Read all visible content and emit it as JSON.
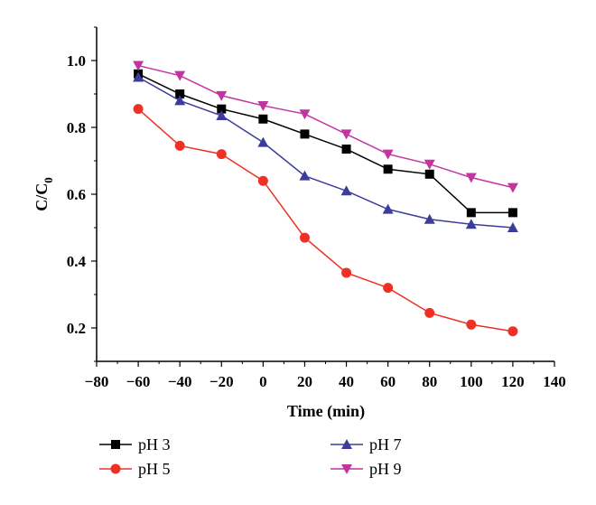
{
  "chart_data": {
    "type": "line",
    "title": "",
    "xlabel": "Time (min)",
    "ylabel": "C/C",
    "ylabel_subscript": "0",
    "xlim": [
      -80,
      140
    ],
    "ylim": [
      0.1,
      1.1
    ],
    "x_ticks": [
      -80,
      -60,
      -40,
      -20,
      0,
      20,
      40,
      60,
      80,
      100,
      120,
      140
    ],
    "y_ticks": [
      0.2,
      0.4,
      0.6,
      0.8,
      1.0
    ],
    "y_tick_labels": [
      "0.2",
      "0.4",
      "0.6",
      "0.8",
      "1.0"
    ],
    "grid": false,
    "legend_position": "bottom",
    "x": [
      -60,
      -40,
      -20,
      0,
      20,
      40,
      60,
      80,
      100,
      120
    ],
    "series": [
      {
        "name": "pH 3",
        "color": "#000000",
        "marker": "square",
        "values": [
          0.96,
          0.9,
          0.855,
          0.825,
          0.78,
          0.735,
          0.675,
          0.66,
          0.545,
          0.545
        ]
      },
      {
        "name": "pH 5",
        "color": "#ee3124",
        "marker": "circle",
        "values": [
          0.855,
          0.745,
          0.72,
          0.64,
          0.47,
          0.365,
          0.32,
          0.245,
          0.21,
          0.19
        ]
      },
      {
        "name": "pH 7",
        "color": "#3c3c9c",
        "marker": "triangle-up",
        "values": [
          0.95,
          0.88,
          0.835,
          0.755,
          0.655,
          0.61,
          0.555,
          0.525,
          0.51,
          0.5
        ]
      },
      {
        "name": "pH 9",
        "color": "#c2359f",
        "marker": "triangle-down",
        "values": [
          0.985,
          0.955,
          0.895,
          0.865,
          0.84,
          0.78,
          0.72,
          0.69,
          0.65,
          0.62
        ]
      }
    ]
  }
}
